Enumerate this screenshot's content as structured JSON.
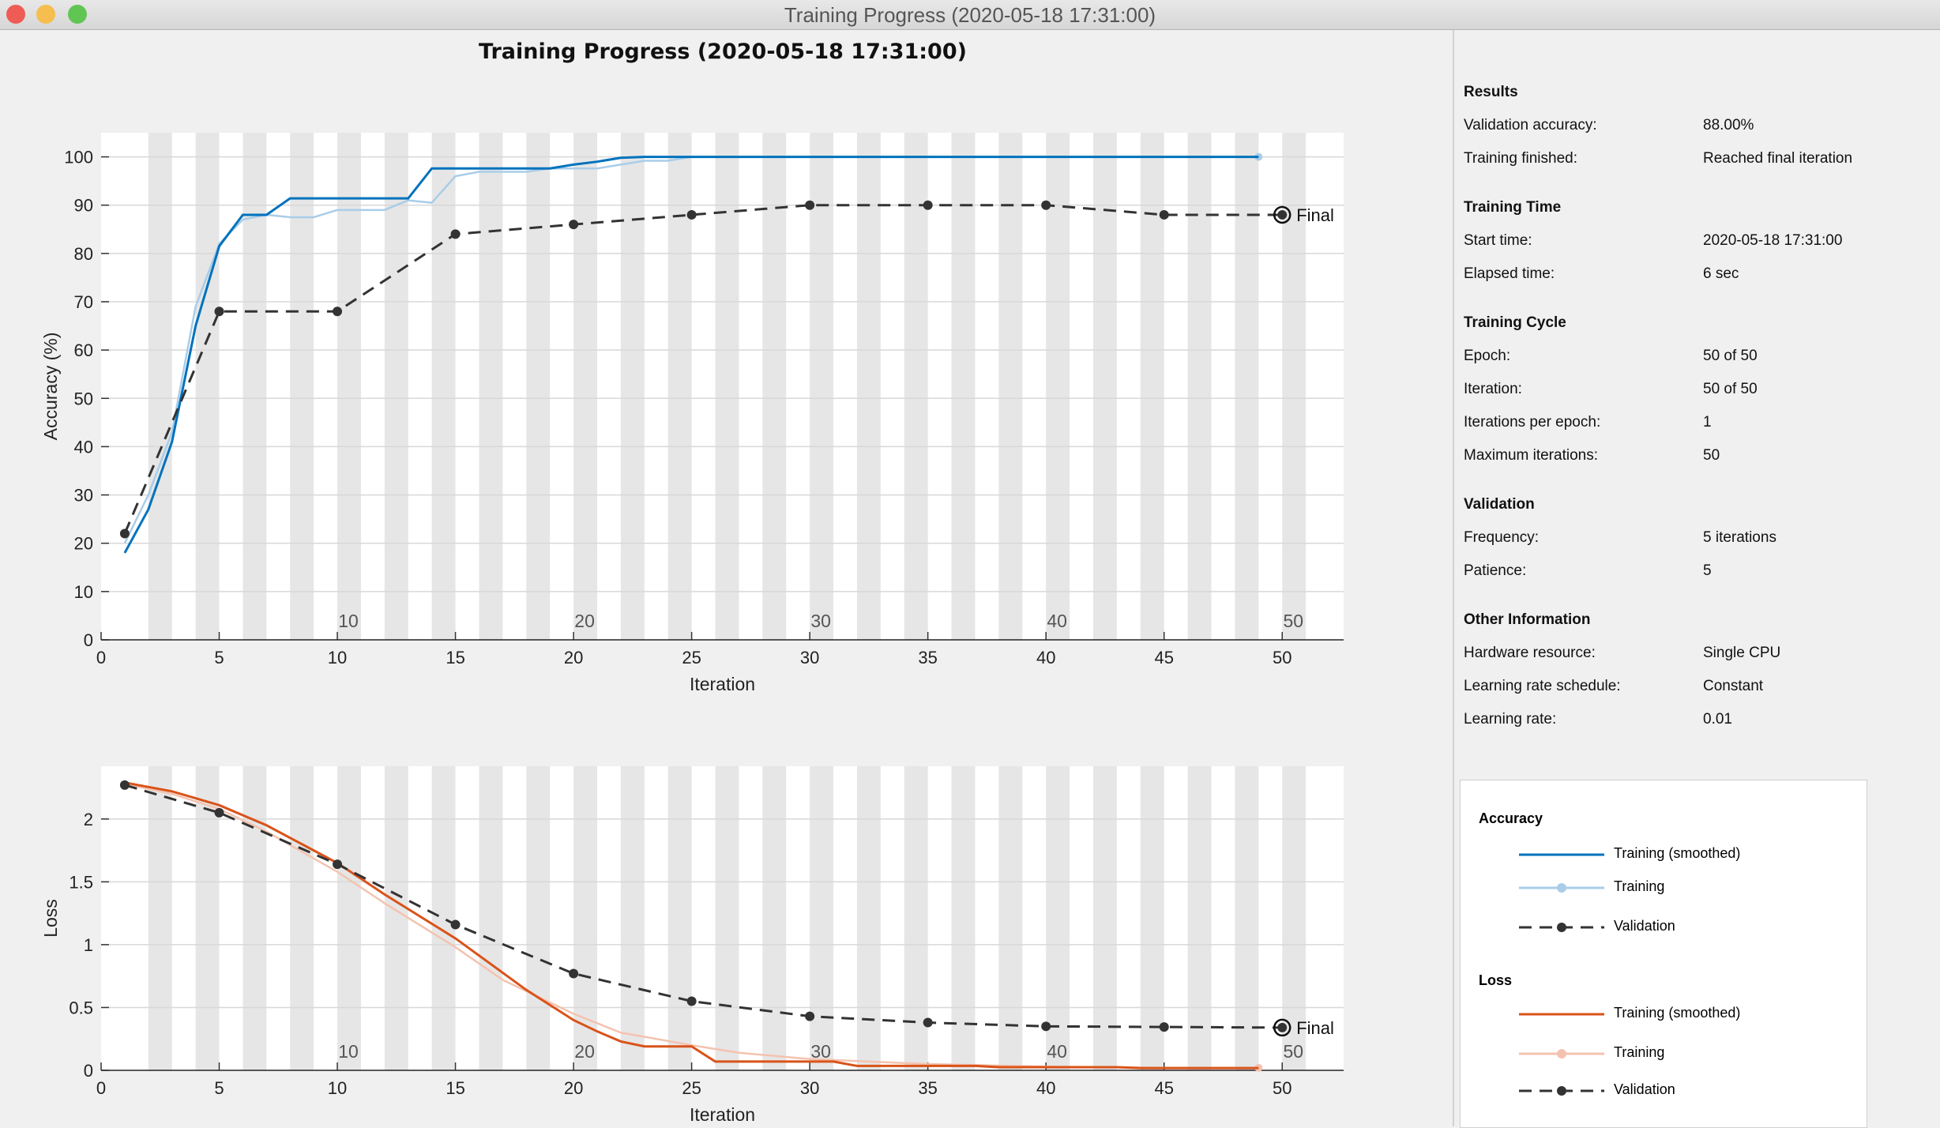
{
  "window": {
    "title": "Training Progress (2020-05-18 17:31:00)",
    "traffic_colors": [
      "#ee5c55",
      "#f5be4f",
      "#61c554"
    ]
  },
  "figure_title": "Training Progress (2020-05-18 17:31:00)",
  "chart_data": [
    {
      "type": "line",
      "name": "accuracy",
      "xlabel": "Iteration",
      "ylabel": "Accuracy (%)",
      "xlim": [
        0,
        52.6
      ],
      "ylim": [
        0,
        105
      ],
      "xticks": [
        0,
        5,
        10,
        15,
        20,
        25,
        30,
        35,
        40,
        45,
        50
      ],
      "yticks": [
        0,
        10,
        20,
        30,
        40,
        50,
        60,
        70,
        80,
        90,
        100
      ],
      "epoch_labels": [
        "10",
        "20",
        "30",
        "40",
        "50"
      ],
      "final_label": "Final",
      "grid": "horizontal",
      "series": [
        {
          "name": "Training",
          "color": "#a9cde8",
          "width": 2.5,
          "x": [
            1,
            2,
            3,
            4,
            5,
            6,
            7,
            8,
            9,
            10,
            11,
            12,
            13,
            14,
            15,
            16,
            17,
            18,
            19,
            20,
            21,
            22,
            23,
            24,
            25,
            26,
            30,
            35,
            40,
            45,
            49
          ],
          "y": [
            20,
            30,
            43,
            69,
            82,
            87,
            88,
            87.5,
            87.5,
            89,
            89,
            89,
            91,
            90.5,
            96,
            96.9,
            96.9,
            96.9,
            97.6,
            97.6,
            97.6,
            98.4,
            99.2,
            99.2,
            100,
            100,
            100,
            100,
            100,
            100,
            100
          ]
        },
        {
          "name": "Training (smoothed)",
          "color": "#0072bd",
          "width": 3,
          "x": [
            1,
            2,
            3,
            4,
            5,
            6,
            7,
            8,
            13,
            14,
            19,
            20,
            21,
            22,
            23,
            30,
            40,
            49
          ],
          "y": [
            18,
            27,
            41,
            65,
            81.5,
            88,
            88,
            91.4,
            91.4,
            97.6,
            97.6,
            98.4,
            99,
            99.8,
            100,
            100,
            100,
            100
          ]
        },
        {
          "name": "Validation",
          "color": "#333333",
          "dashed": true,
          "markers": true,
          "x": [
            1,
            5,
            10,
            15,
            20,
            25,
            30,
            35,
            40,
            45,
            50
          ],
          "y": [
            22,
            68,
            68,
            84,
            86,
            88,
            90,
            90,
            90,
            88,
            88
          ]
        }
      ]
    },
    {
      "type": "line",
      "name": "loss",
      "xlabel": "Iteration",
      "ylabel": "Loss",
      "xlim": [
        0,
        52.6
      ],
      "ylim": [
        0,
        2.42
      ],
      "xticks": [
        0,
        5,
        10,
        15,
        20,
        25,
        30,
        35,
        40,
        45,
        50
      ],
      "yticks": [
        0,
        0.5,
        1,
        1.5,
        2
      ],
      "epoch_labels": [
        "10",
        "20",
        "30",
        "40",
        "50"
      ],
      "final_label": "Final",
      "grid": "horizontal",
      "series": [
        {
          "name": "Training",
          "color": "#f4c3b0",
          "width": 2.5,
          "x": [
            1,
            3,
            5,
            7,
            10,
            12,
            15,
            17,
            20,
            22,
            25,
            27,
            30,
            35,
            40,
            45,
            49
          ],
          "y": [
            2.28,
            2.2,
            2.08,
            1.9,
            1.58,
            1.33,
            0.98,
            0.72,
            0.45,
            0.3,
            0.2,
            0.14,
            0.09,
            0.05,
            0.03,
            0.02,
            0.02
          ]
        },
        {
          "name": "Training (smoothed)",
          "color": "#d95319",
          "width": 3,
          "x": [
            1,
            3,
            5,
            7,
            10,
            12,
            15,
            18,
            19,
            20,
            21,
            22,
            23,
            25,
            26,
            31,
            32,
            37,
            38,
            43,
            44,
            49
          ],
          "y": [
            2.29,
            2.22,
            2.11,
            1.95,
            1.65,
            1.4,
            1.05,
            0.64,
            0.52,
            0.4,
            0.31,
            0.23,
            0.19,
            0.19,
            0.07,
            0.07,
            0.035,
            0.035,
            0.025,
            0.025,
            0.018,
            0.018
          ]
        },
        {
          "name": "Validation",
          "color": "#333333",
          "dashed": true,
          "markers": true,
          "x": [
            1,
            5,
            10,
            15,
            20,
            25,
            30,
            35,
            40,
            45,
            50
          ],
          "y": [
            2.27,
            2.05,
            1.64,
            1.16,
            0.77,
            0.55,
            0.43,
            0.38,
            0.35,
            0.345,
            0.34
          ]
        }
      ]
    }
  ],
  "panel": {
    "sections": [
      {
        "title": "Results",
        "rows": [
          [
            "Validation accuracy:",
            "88.00%"
          ],
          [
            "Training finished:",
            "Reached final iteration"
          ]
        ]
      },
      {
        "title": "Training Time",
        "rows": [
          [
            "Start time:",
            "2020-05-18 17:31:00"
          ],
          [
            "Elapsed time:",
            "6 sec"
          ]
        ]
      },
      {
        "title": "Training Cycle",
        "rows": [
          [
            "Epoch:",
            "50 of 50"
          ],
          [
            "Iteration:",
            "50 of 50"
          ],
          [
            "Iterations per epoch:",
            "1"
          ],
          [
            "Maximum iterations:",
            "50"
          ]
        ]
      },
      {
        "title": "Validation",
        "rows": [
          [
            "Frequency:",
            "5 iterations"
          ],
          [
            "Patience:",
            "5"
          ]
        ]
      },
      {
        "title": "Other Information",
        "rows": [
          [
            "Hardware resource:",
            "Single CPU"
          ],
          [
            "Learning rate schedule:",
            "Constant"
          ],
          [
            "Learning rate:",
            "0.01"
          ]
        ]
      }
    ]
  },
  "legend": {
    "accuracy_title": "Accuracy",
    "accuracy_items": [
      {
        "label": "Training (smoothed)",
        "color": "#0072bd",
        "style": "solid"
      },
      {
        "label": "Training",
        "color": "#a9cde8",
        "style": "dot"
      },
      {
        "label": "Validation",
        "color": "#333333",
        "style": "dashed"
      }
    ],
    "loss_title": "Loss",
    "loss_items": [
      {
        "label": "Training (smoothed)",
        "color": "#d95319",
        "style": "solid"
      },
      {
        "label": "Training",
        "color": "#f4c3b0",
        "style": "dot"
      },
      {
        "label": "Validation",
        "color": "#333333",
        "style": "dashed"
      }
    ]
  }
}
